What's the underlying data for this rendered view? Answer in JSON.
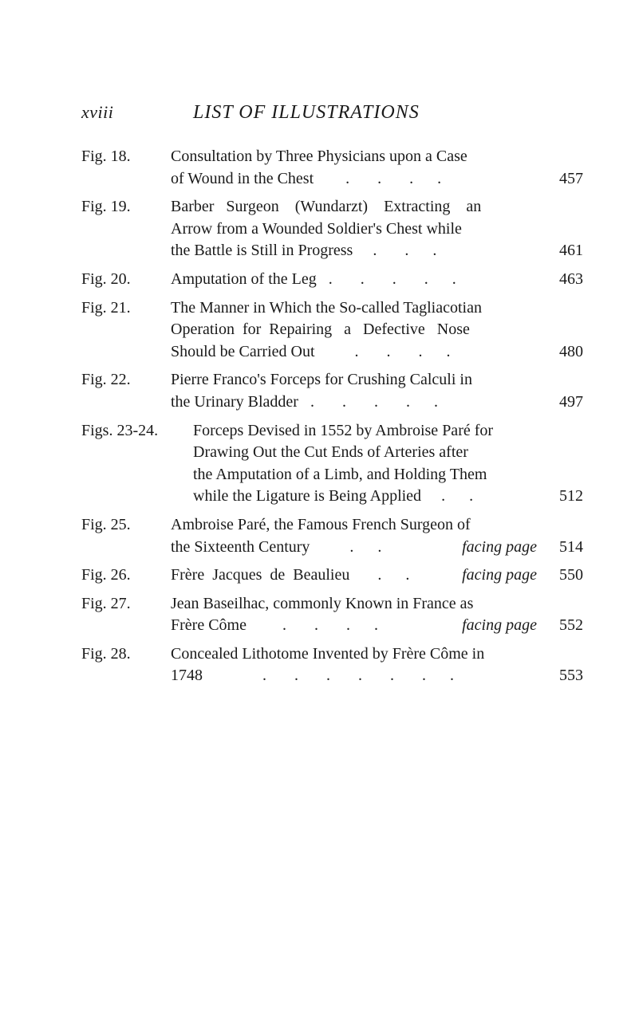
{
  "header": {
    "page_num": "xviii",
    "title": "LIST OF ILLUSTRATIONS"
  },
  "entries": [
    {
      "label": "Fig. 18.",
      "lines": [
        "Consultation by Three Physicians upon a Case"
      ],
      "last_lead": "of Wound in the Chest",
      "dots": "        .       .       .      .",
      "page": "457"
    },
    {
      "label": "Fig. 19.",
      "lines": [
        "Barber   Surgeon    (Wundarzt)    Extracting    an",
        "Arrow from a Wounded Soldier's Chest while"
      ],
      "last_lead": "the Battle is Still in Progress",
      "dots": "     .       .      .",
      "page": "461"
    },
    {
      "label": "Fig. 20.",
      "lines": [],
      "last_lead": "Amputation of the Leg   .",
      "dots": "       .       .       .      .",
      "page": "463"
    },
    {
      "label": "Fig. 21.",
      "lines": [
        "The Manner in Which the So-called Tagliacotian",
        "Operation  for  Repairing   a   Defective   Nose"
      ],
      "last_lead": "Should be Carried Out",
      "dots": "          .       .       .      .",
      "page": "480"
    },
    {
      "label": "Fig. 22.",
      "lines": [
        "Pierre Franco's Forceps for Crushing Calculi in"
      ],
      "last_lead": "the Urinary Bladder   .",
      "dots": "       .       .       .      .",
      "page": "497"
    },
    {
      "label": "Figs. 23-24.",
      "label_wide": true,
      "lines": [
        "Forceps Devised in 1552 by Ambroise Paré for",
        "Drawing Out the Cut Ends of Arteries after",
        "the Amputation of a Limb, and Holding Them"
      ],
      "last_lead": "while the Ligature is Being Applied",
      "dots": "     .      .",
      "page": "512"
    },
    {
      "label": "Fig. 25.",
      "lines": [
        "Ambroise Paré, the Famous French Surgeon of"
      ],
      "last_lead": "the Sixteenth Century",
      "dots": "          .      .   ",
      "facing": "facing page",
      "page": "514"
    },
    {
      "label": "Fig. 26.",
      "lines": [],
      "last_lead": "Frère  Jacques  de  Beaulieu",
      "dots": "       .      .   ",
      "facing": "facing page",
      "page": "550"
    },
    {
      "label": "Fig. 27.",
      "lines": [
        "Jean Baseilhac, commonly Known in France as"
      ],
      "last_lead": "Frère Côme",
      "dots": "         .       .       .      .   ",
      "facing": "facing page",
      "page": "552"
    },
    {
      "label": "Fig. 28.",
      "lines": [
        "Concealed Lithotome Invented by Frère Côme in"
      ],
      "last_lead": "1748",
      "dots": "               .       .       .       .       .       .      .",
      "page": "553"
    }
  ]
}
